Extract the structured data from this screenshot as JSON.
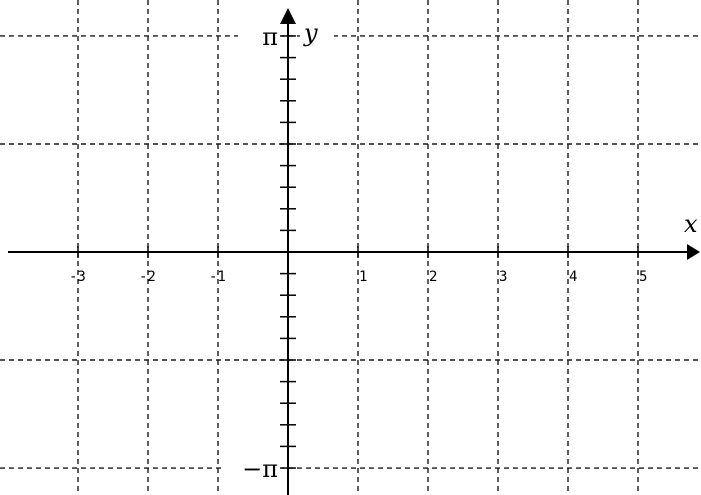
{
  "chart_data": {
    "type": "line",
    "title": "",
    "xlabel": "x",
    "ylabel": "y",
    "xlim": [
      -4.0,
      6.0
    ],
    "ylim": [
      -3.14159,
      3.14159
    ],
    "x_ticks": [
      -3,
      -2,
      -1,
      1,
      2,
      3,
      4,
      5
    ],
    "x_tick_labels": [
      "-3",
      "-2",
      "-1",
      "1",
      "2",
      "3",
      "4",
      "5"
    ],
    "x_gridlines": [
      -3,
      -2,
      -1,
      1,
      2,
      3,
      4,
      5
    ],
    "y_gridlines": [
      -3.14159,
      -1.5708,
      1.5708,
      3.14159
    ],
    "y_tick_step": 0.314159,
    "y_tick_labels": [
      {
        "value": 3.14159,
        "label": "π"
      },
      {
        "value": -3.14159,
        "label": "−π"
      }
    ],
    "grid": true,
    "grid_style": "dashed",
    "series": []
  }
}
